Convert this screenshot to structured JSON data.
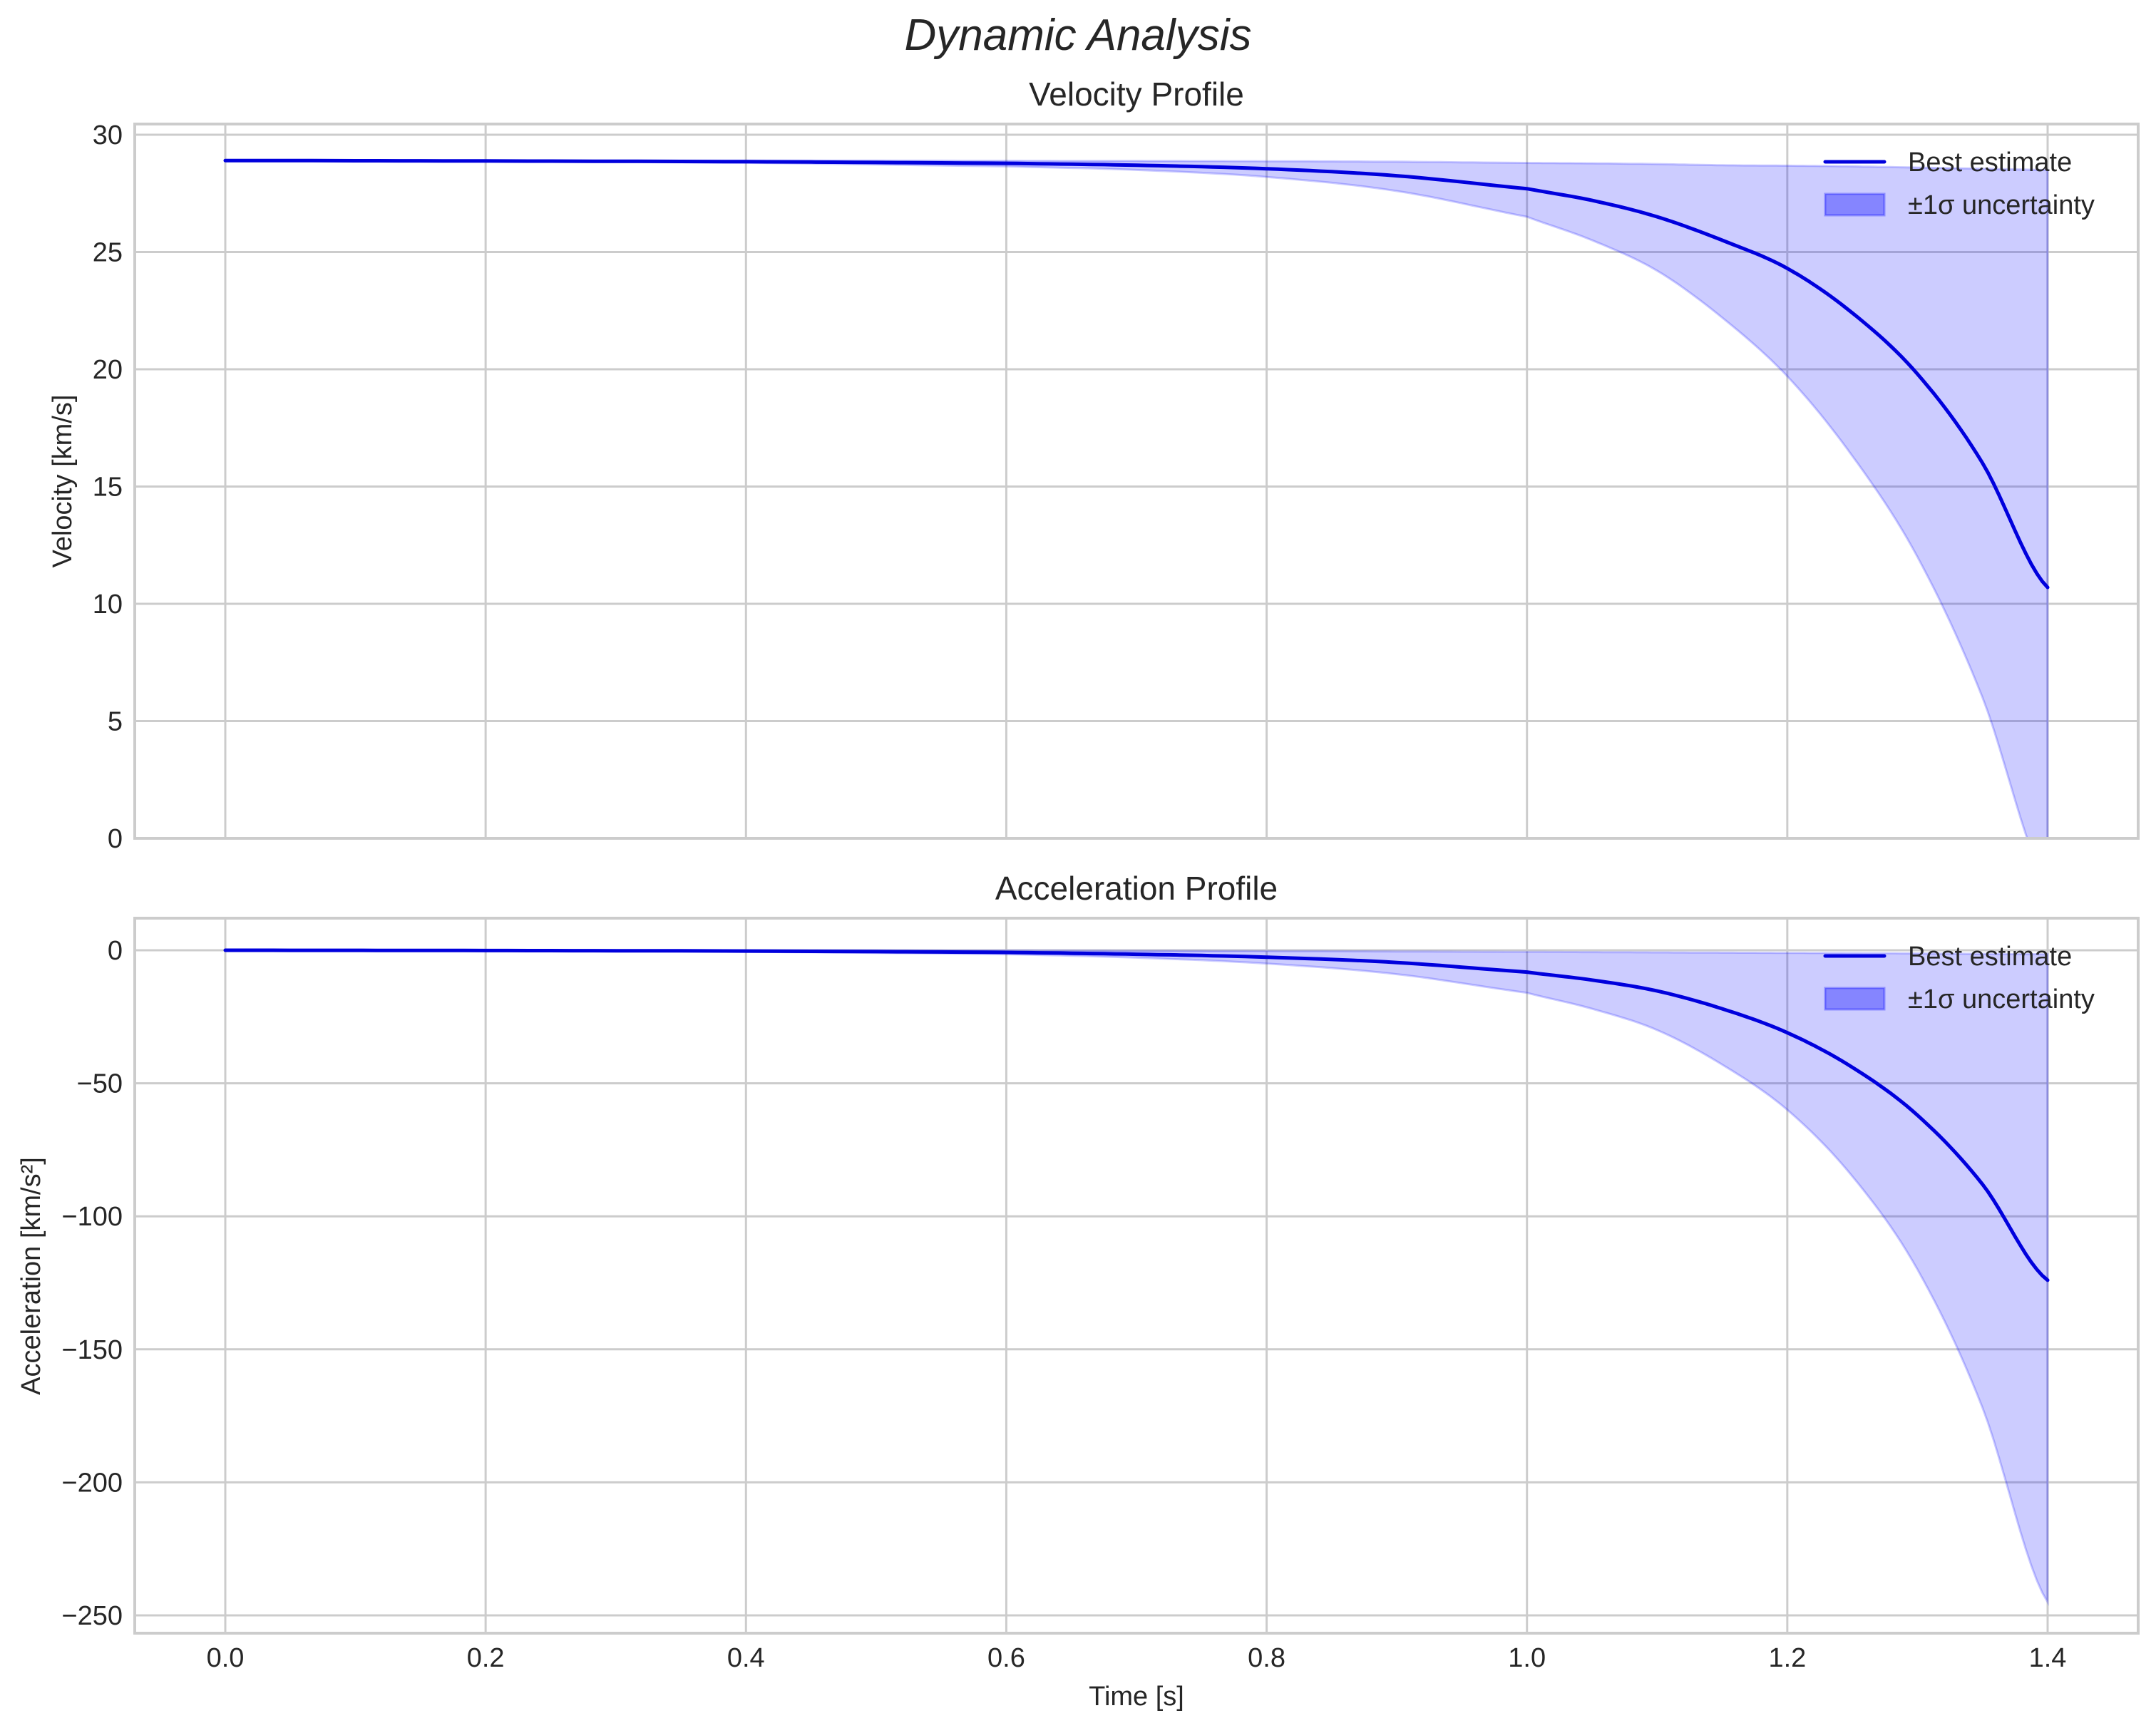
{
  "figure": {
    "suptitle": "Dynamic Analysis",
    "xlabel": "Time [s]"
  },
  "legend": {
    "line_label": "Best estimate",
    "band_label": "±1σ uncertainty"
  },
  "colors": {
    "line": "#0000dd",
    "band_fill": "#0000ff",
    "band_alpha": 0.2,
    "grid": "#cccccc",
    "text": "#262626"
  },
  "chart_data": [
    {
      "type": "line",
      "title": "Velocity Profile",
      "xlabel": "",
      "ylabel": "Velocity [km/s]",
      "xlim": [
        -0.07,
        1.47
      ],
      "ylim": [
        0,
        30
      ],
      "grid": true,
      "legend_position": "upper right",
      "x_ticks": [
        "0.0",
        "0.2",
        "0.4",
        "0.6",
        "0.8",
        "1.0",
        "1.2",
        "1.4"
      ],
      "y_ticks": [
        "0",
        "5",
        "10",
        "15",
        "20",
        "25",
        "30"
      ],
      "x": [
        0.0,
        0.2,
        0.4,
        0.6,
        0.7,
        0.8,
        0.9,
        1.0,
        1.05,
        1.1,
        1.15,
        1.2,
        1.25,
        1.3,
        1.35,
        1.4
      ],
      "series": [
        {
          "name": "Best estimate",
          "values": [
            28.9,
            28.88,
            28.85,
            28.78,
            28.7,
            28.55,
            28.25,
            27.7,
            27.2,
            26.5,
            25.5,
            24.3,
            22.4,
            19.8,
            16.0,
            10.7
          ]
        },
        {
          "name": "±1σ upper",
          "values": [
            28.9,
            28.9,
            28.9,
            28.89,
            28.88,
            28.87,
            28.85,
            28.8,
            28.78,
            28.75,
            28.7,
            28.68,
            28.65,
            28.6,
            28.55,
            28.5
          ]
        },
        {
          "name": "±1σ lower",
          "values": [
            28.9,
            28.86,
            28.8,
            28.65,
            28.5,
            28.2,
            27.6,
            26.5,
            25.5,
            24.2,
            22.2,
            19.7,
            16.3,
            12.0,
            6.0,
            -2.0
          ]
        }
      ]
    },
    {
      "type": "line",
      "title": "Acceleration Profile",
      "xlabel": "Time [s]",
      "ylabel": "Acceleration [km/s²]",
      "xlim": [
        -0.07,
        1.47
      ],
      "ylim": [
        -257,
        12
      ],
      "grid": true,
      "legend_position": "upper right",
      "x_ticks": [
        "0.0",
        "0.2",
        "0.4",
        "0.6",
        "0.8",
        "1.0",
        "1.2",
        "1.4"
      ],
      "y_ticks": [
        "0",
        "−50",
        "−100",
        "−150",
        "−200",
        "−250"
      ],
      "x": [
        0.0,
        0.2,
        0.4,
        0.6,
        0.7,
        0.8,
        0.9,
        1.0,
        1.05,
        1.1,
        1.15,
        1.2,
        1.25,
        1.3,
        1.35,
        1.4
      ],
      "series": [
        {
          "name": "Best estimate",
          "values": [
            0,
            -0.1,
            -0.3,
            -0.8,
            -1.5,
            -2.6,
            -4.6,
            -8.2,
            -11.2,
            -15.3,
            -22.0,
            -31.0,
            -44.0,
            -62.0,
            -88.0,
            -124.0
          ]
        },
        {
          "name": "±1σ upper",
          "values": [
            0,
            0,
            -0.05,
            -0.1,
            -0.2,
            -0.3,
            -0.45,
            -0.6,
            -0.7,
            -0.8,
            -0.9,
            -1.0,
            -1.1,
            -1.2,
            -1.35,
            -1.5
          ]
        },
        {
          "name": "±1σ lower",
          "values": [
            0,
            -0.2,
            -0.6,
            -1.5,
            -2.8,
            -5.0,
            -9.0,
            -16.0,
            -22.0,
            -30.0,
            -43.0,
            -60.0,
            -85.0,
            -120.0,
            -172.0,
            -245.0
          ]
        }
      ]
    }
  ]
}
